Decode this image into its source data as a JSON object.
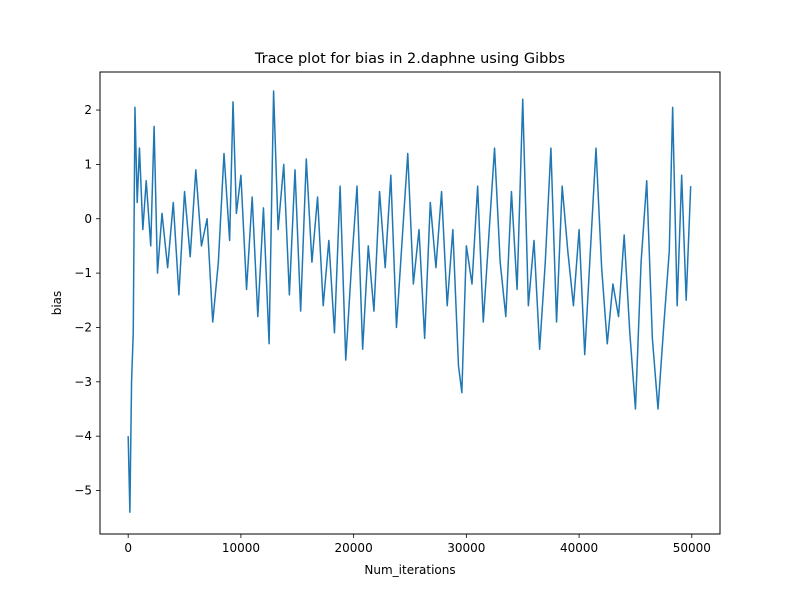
{
  "chart_data": {
    "type": "line",
    "title": "Trace plot for bias in 2.daphne using Gibbs",
    "xlabel": "Num_iterations",
    "ylabel": "bias",
    "xlim": [
      -2500,
      52500
    ],
    "ylim": [
      -5.8,
      2.7
    ],
    "xticks": [
      0,
      10000,
      20000,
      30000,
      40000,
      50000
    ],
    "xtick_labels": [
      "0",
      "10000",
      "20000",
      "30000",
      "40000",
      "50000"
    ],
    "yticks": [
      -5,
      -4,
      -3,
      -2,
      -1,
      0,
      1,
      2
    ],
    "ytick_labels": [
      "−5",
      "−4",
      "−3",
      "−2",
      "−1",
      "0",
      "1",
      "2"
    ],
    "grid": false,
    "series": [
      {
        "color": "#1f77b4",
        "x": [
          0,
          150,
          300,
          450,
          600,
          800,
          1000,
          1300,
          1600,
          2000,
          2300,
          2600,
          3000,
          3500,
          4000,
          4500,
          5000,
          5500,
          6000,
          6500,
          7000,
          7500,
          8000,
          8500,
          9000,
          9300,
          9600,
          10000,
          10500,
          11000,
          11500,
          12000,
          12500,
          12900,
          13300,
          13800,
          14300,
          14800,
          15300,
          15800,
          16300,
          16800,
          17300,
          17800,
          18300,
          18800,
          19300,
          19800,
          20300,
          20800,
          21300,
          21800,
          22300,
          22800,
          23300,
          23800,
          24300,
          24800,
          25300,
          25800,
          26300,
          26800,
          27300,
          27800,
          28300,
          28800,
          29300,
          29600,
          30000,
          30500,
          31000,
          31500,
          32000,
          32500,
          33000,
          33500,
          34000,
          34500,
          35000,
          35500,
          36000,
          36500,
          37000,
          37500,
          38000,
          38500,
          39000,
          39500,
          40000,
          40500,
          41000,
          41500,
          42000,
          42500,
          43000,
          43500,
          44000,
          44500,
          45000,
          45500,
          46000,
          46500,
          47000,
          47500,
          48000,
          48300,
          48700,
          49100,
          49500,
          49900
        ],
        "values": [
          -4.0,
          -5.4,
          -3.0,
          -2.1,
          2.05,
          0.3,
          1.3,
          -0.2,
          0.7,
          -0.5,
          1.7,
          -1.0,
          0.1,
          -0.9,
          0.3,
          -1.4,
          0.5,
          -0.7,
          0.9,
          -0.5,
          0.0,
          -1.9,
          -0.8,
          1.2,
          -0.4,
          2.15,
          0.1,
          0.8,
          -1.3,
          0.4,
          -1.8,
          0.2,
          -2.3,
          2.35,
          -0.2,
          1.0,
          -1.4,
          0.9,
          -1.7,
          1.1,
          -0.8,
          0.4,
          -1.6,
          -0.4,
          -2.1,
          0.6,
          -2.6,
          -0.9,
          0.6,
          -2.4,
          -0.5,
          -1.7,
          0.5,
          -0.9,
          0.8,
          -2.0,
          -0.4,
          1.2,
          -1.2,
          -0.2,
          -2.2,
          0.3,
          -0.9,
          0.5,
          -1.6,
          -0.2,
          -2.7,
          -3.2,
          -0.5,
          -1.2,
          0.6,
          -1.9,
          -0.3,
          1.3,
          -0.8,
          -1.8,
          0.5,
          -1.3,
          2.2,
          -1.6,
          -0.4,
          -2.4,
          -0.8,
          1.3,
          -1.9,
          0.6,
          -0.6,
          -1.6,
          -0.2,
          -2.5,
          -0.6,
          1.3,
          -0.9,
          -2.3,
          -1.2,
          -1.8,
          -0.3,
          -2.1,
          -3.5,
          -0.8,
          0.7,
          -2.2,
          -3.5,
          -2.0,
          -0.6,
          2.05,
          -1.6,
          0.8,
          -1.5,
          0.6
        ]
      }
    ]
  }
}
